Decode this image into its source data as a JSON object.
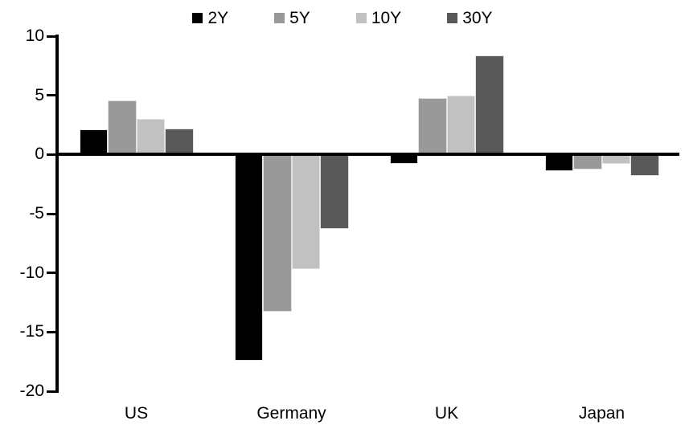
{
  "chart_data": {
    "type": "bar",
    "title": "",
    "xlabel": "",
    "ylabel": "",
    "categories": [
      "US",
      "Germany",
      "UK",
      "Japan"
    ],
    "series": [
      {
        "name": "2Y",
        "color": "#000000",
        "values": [
          2.1,
          -17.4,
          -0.8,
          -1.4
        ]
      },
      {
        "name": "5Y",
        "color": "#999999",
        "values": [
          4.6,
          -13.3,
          4.8,
          -1.3
        ]
      },
      {
        "name": "10Y",
        "color": "#c1c1c1",
        "values": [
          3.0,
          -9.7,
          5.0,
          -0.8
        ]
      },
      {
        "name": "30Y",
        "color": "#595959",
        "values": [
          2.2,
          -6.3,
          8.4,
          -1.8
        ]
      }
    ],
    "y_ticks": [
      10,
      5,
      0,
      -5,
      -10,
      -15,
      -20
    ],
    "ylim": [
      -20,
      10
    ],
    "grid": false,
    "legend_position": "top",
    "axis_color": "#000000",
    "background_color": "#ffffff",
    "bar_border_color": "#e3e3e3"
  }
}
